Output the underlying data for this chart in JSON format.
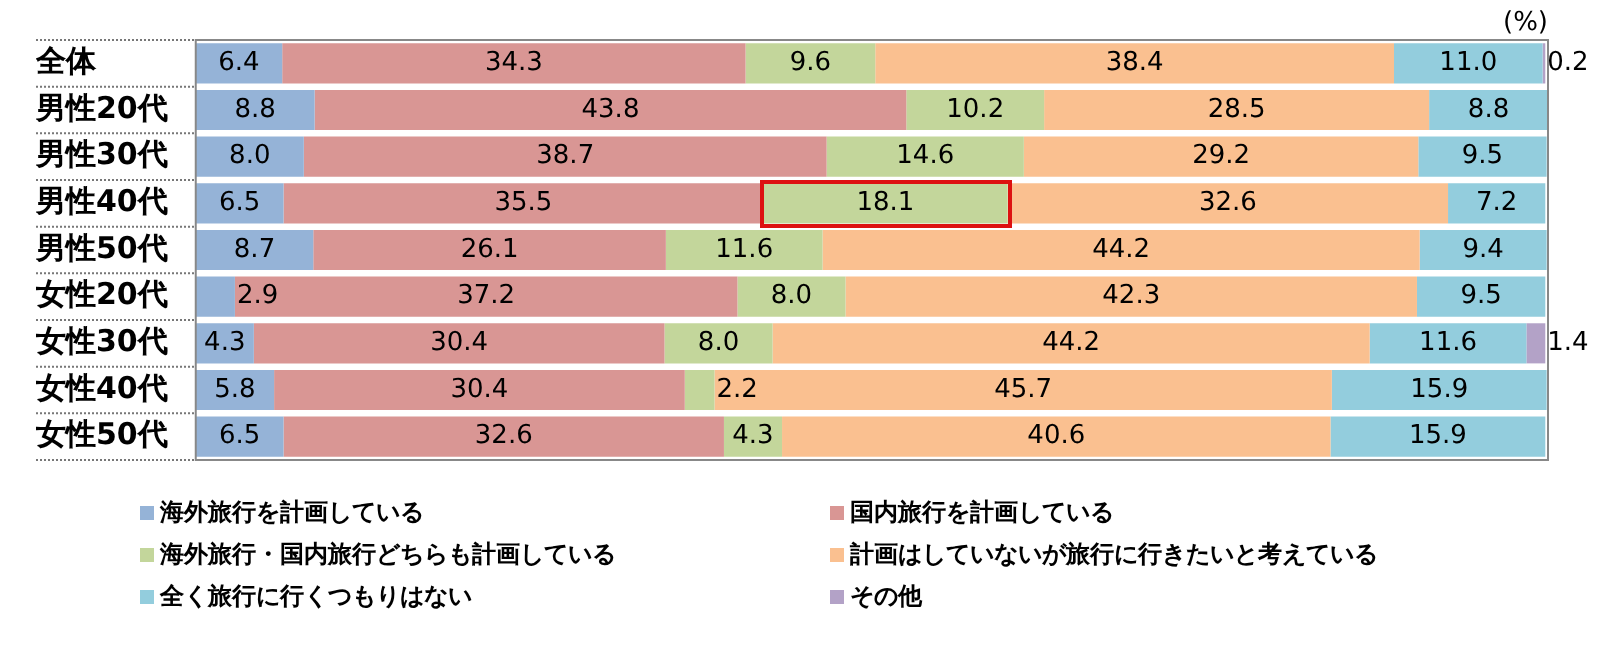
{
  "chart_data": {
    "type": "bar",
    "orientation": "horizontal",
    "stacked": true,
    "tick_labels": "y",
    "legend": "bottom",
    "annotations": [
      "(%)"
    ],
    "categories": [
      "全体",
      "男性20代",
      "男性30代",
      "男性40代",
      "男性50代",
      "女性20代",
      "女性30代",
      "女性40代",
      "女性50代"
    ],
    "series": [
      {
        "name": "海外旅行を計画している",
        "color": "#95b3d7",
        "values": [
          6.4,
          8.8,
          8.0,
          6.5,
          8.7,
          2.9,
          4.3,
          5.8,
          6.5
        ],
        "value_labels": [
          "6.4",
          "8.8",
          "8.0",
          "6.5",
          "8.7",
          "2.9",
          "4.3",
          "5.8",
          "6.5"
        ]
      },
      {
        "name": "国内旅行を計画している",
        "color": "#d99694",
        "values": [
          34.3,
          43.8,
          38.7,
          35.5,
          26.1,
          37.2,
          30.4,
          30.4,
          32.6
        ],
        "value_labels": [
          "34.3",
          "43.8",
          "38.7",
          "35.5",
          "26.1",
          "37.2",
          "30.4",
          "30.4",
          "32.6"
        ]
      },
      {
        "name": "海外旅行・国内旅行どちらも計画している",
        "color": "#c3d69b",
        "values": [
          9.6,
          10.2,
          14.6,
          18.1,
          11.6,
          8.0,
          8.0,
          2.2,
          4.3
        ],
        "value_labels": [
          "9.6",
          "10.2",
          "14.6",
          "18.1",
          "11.6",
          "8.0",
          "8.0",
          "2.2",
          "4.3"
        ]
      },
      {
        "name": "計画はしていないが旅行に行きたいと考えている",
        "color": "#fac090",
        "values": [
          38.4,
          28.5,
          29.2,
          32.6,
          44.2,
          42.3,
          44.2,
          45.7,
          40.6
        ],
        "value_labels": [
          "38.4",
          "28.5",
          "29.2",
          "32.6",
          "44.2",
          "42.3",
          "44.2",
          "45.7",
          "40.6"
        ]
      },
      {
        "name": "全く旅行に行くつもりはない",
        "color": "#93cddd",
        "values": [
          11.0,
          8.8,
          9.5,
          7.2,
          9.4,
          9.5,
          11.6,
          15.9,
          15.9
        ],
        "value_labels": [
          "11.0",
          "8.8",
          "9.5",
          "7.2",
          "9.4",
          "9.5",
          "11.6",
          "15.9",
          "15.9"
        ]
      },
      {
        "name": "その他",
        "color": "#b3a2c7",
        "values": [
          0.2,
          null,
          null,
          null,
          null,
          null,
          1.4,
          null,
          null
        ],
        "value_labels": [
          "0.2",
          null,
          null,
          null,
          null,
          null,
          "1.4",
          null,
          null
        ]
      }
    ]
  }
}
